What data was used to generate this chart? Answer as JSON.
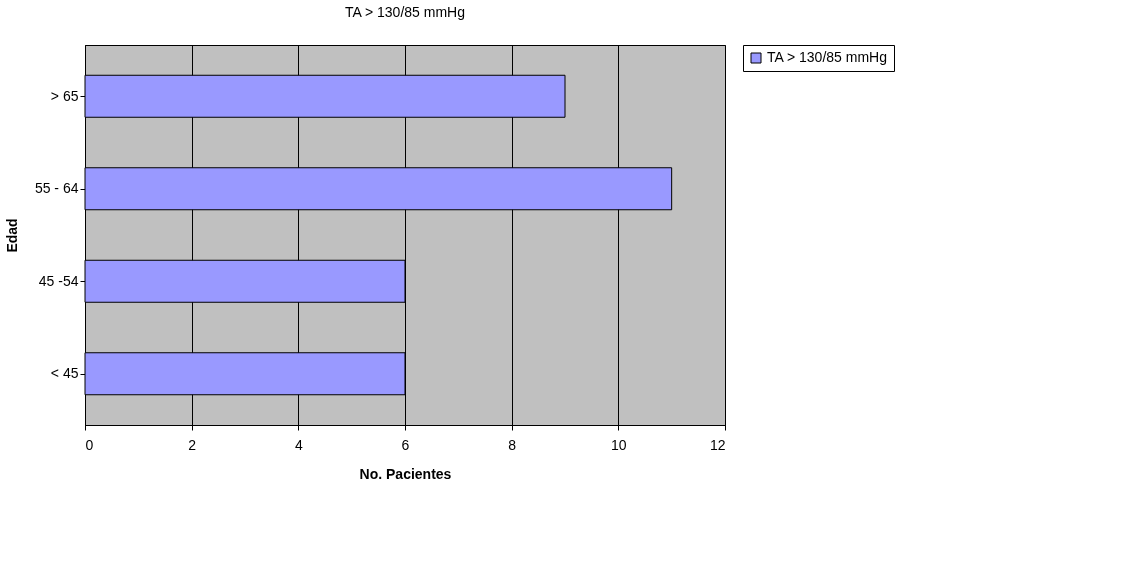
{
  "chart_data": {
    "type": "bar",
    "orientation": "horizontal",
    "title": "TA > 130/85 mmHg",
    "xlabel": "No. Pacientes",
    "ylabel": "Edad",
    "categories": [
      "> 65",
      "55 - 64",
      "45 -54",
      "< 45"
    ],
    "series": [
      {
        "name": "TA > 130/85 mmHg",
        "color": "#9999ff",
        "values": [
          9,
          11,
          6,
          6
        ]
      }
    ],
    "xlim": [
      0,
      12
    ],
    "xticks": [
      0,
      2,
      4,
      6,
      8,
      10,
      12
    ],
    "grid": "x",
    "legend": "right"
  }
}
